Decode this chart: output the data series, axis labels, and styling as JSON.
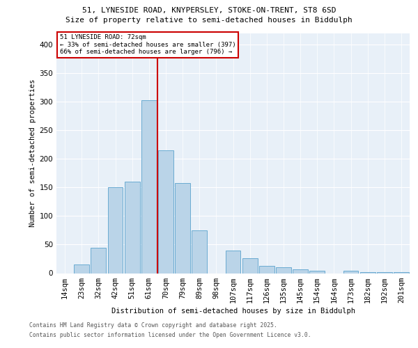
{
  "title_line1": "51, LYNESIDE ROAD, KNYPERSLEY, STOKE-ON-TRENT, ST8 6SD",
  "title_line2": "Size of property relative to semi-detached houses in Biddulph",
  "xlabel": "Distribution of semi-detached houses by size in Biddulph",
  "ylabel": "Number of semi-detached properties",
  "categories": [
    "14sqm",
    "23sqm",
    "32sqm",
    "42sqm",
    "51sqm",
    "61sqm",
    "70sqm",
    "79sqm",
    "89sqm",
    "98sqm",
    "107sqm",
    "117sqm",
    "126sqm",
    "135sqm",
    "145sqm",
    "154sqm",
    "164sqm",
    "173sqm",
    "182sqm",
    "192sqm",
    "201sqm"
  ],
  "values": [
    0,
    15,
    45,
    150,
    160,
    303,
    215,
    158,
    75,
    0,
    40,
    26,
    13,
    10,
    7,
    4,
    0,
    4,
    2,
    2,
    2
  ],
  "bar_color": "#bad4e8",
  "bar_edge_color": "#6aabd2",
  "background_color": "#e8f0f8",
  "vline_color": "#cc0000",
  "vline_x": 5.5,
  "annotation_title": "51 LYNESIDE ROAD: 72sqm",
  "annotation_line2": "← 33% of semi-detached houses are smaller (397)",
  "annotation_line3": "66% of semi-detached houses are larger (796) →",
  "footer_line1": "Contains HM Land Registry data © Crown copyright and database right 2025.",
  "footer_line2": "Contains public sector information licensed under the Open Government Licence v3.0.",
  "ylim": [
    0,
    420
  ],
  "yticks": [
    0,
    50,
    100,
    150,
    200,
    250,
    300,
    350,
    400
  ],
  "figsize": [
    6.0,
    5.0
  ],
  "dpi": 100
}
